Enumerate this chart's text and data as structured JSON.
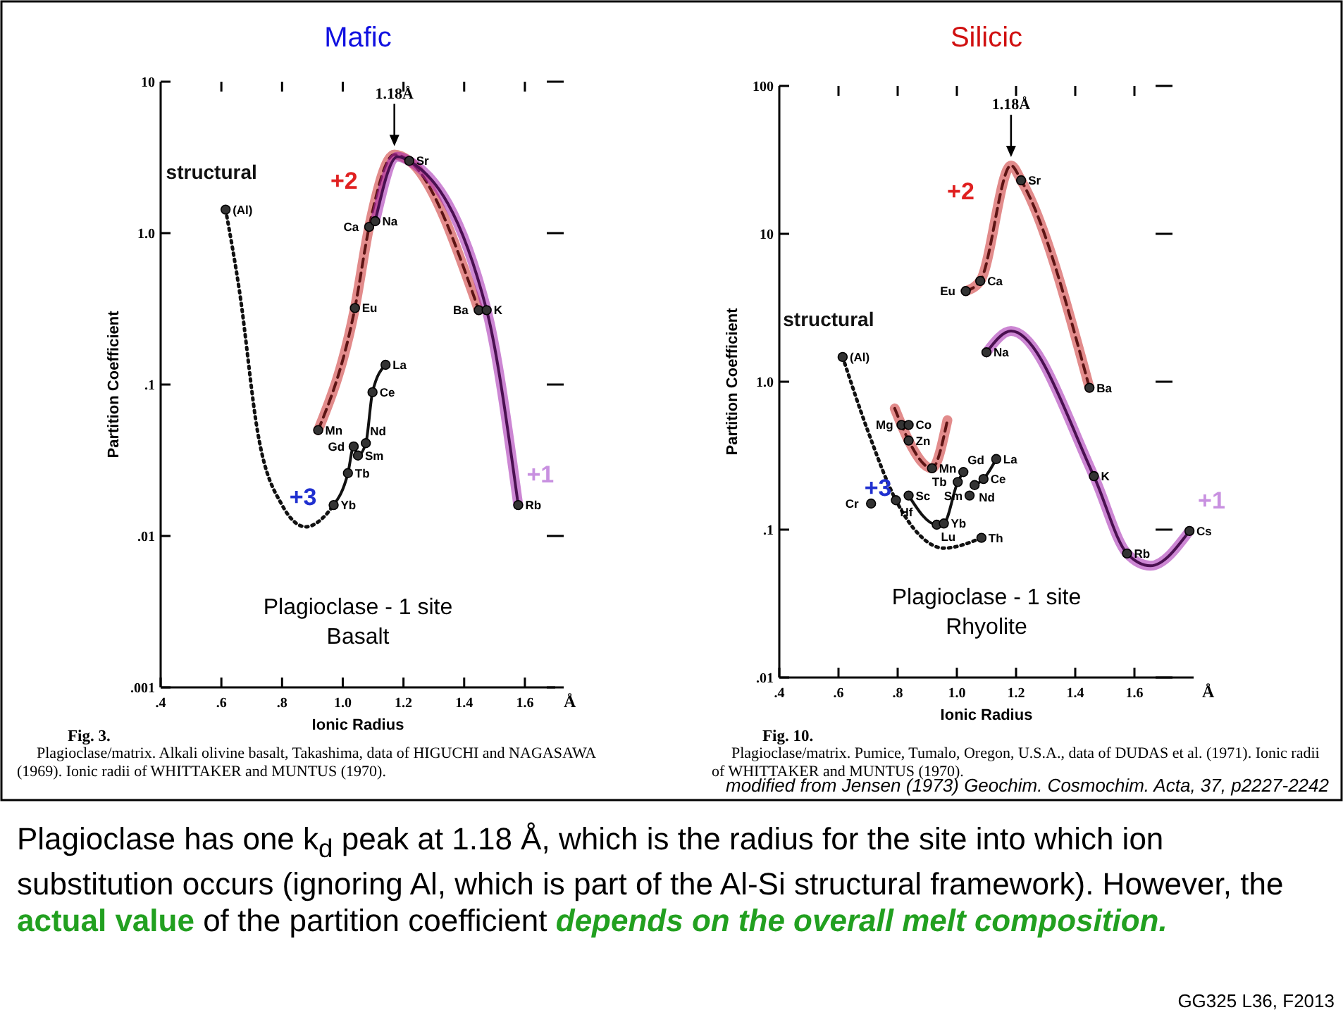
{
  "chart_data": [
    {
      "type": "line",
      "title": "Mafic",
      "xlabel": "Ionic Radius",
      "ylabel": "Partition Coefficient",
      "log": "y",
      "xlim": [
        0.4,
        1.7
      ],
      "ylim": [
        0.001,
        10
      ],
      "xticks": [
        {
          "value": 0.4,
          "label": ".4"
        },
        {
          "value": 0.6,
          "label": ".6"
        },
        {
          "value": 0.8,
          "label": ".8"
        },
        {
          "value": 1.0,
          "label": "1.0"
        },
        {
          "value": 1.2,
          "label": "1.2"
        },
        {
          "value": 1.4,
          "label": "1.4"
        },
        {
          "value": 1.6,
          "label": "1.6"
        }
      ],
      "yticks": [
        {
          "value": 10,
          "label": "10"
        },
        {
          "value": 1,
          "label": "1.0"
        },
        {
          "value": 0.1,
          "label": ".1"
        },
        {
          "value": 0.01,
          "label": ".01"
        },
        {
          "value": 0.001,
          "label": ".001"
        }
      ],
      "series": [
        {
          "name": "structural",
          "type": "line",
          "color": "#111111",
          "line_style": "dotted",
          "marker": "none",
          "x": [
            0.614,
            0.66,
            0.72,
            0.8,
            0.878,
            0.94,
            0.97
          ],
          "values": [
            1.43,
            0.41,
            0.048,
            0.016,
            0.0115,
            0.0135,
            0.016
          ]
        },
        {
          "name": "+3",
          "type": "line",
          "color": "#111111",
          "line_style": "solid",
          "marker": "none",
          "x": [
            0.97,
            1.017,
            1.036,
            1.05,
            1.076,
            1.098,
            1.141
          ],
          "values": [
            0.016,
            0.026,
            0.039,
            0.034,
            0.041,
            0.089,
            0.135
          ]
        },
        {
          "name": "+2",
          "type": "line",
          "color": "#5c1414",
          "line_style": "dashed",
          "marker": "none",
          "x": [
            0.919,
            1.04,
            1.087,
            1.17,
            1.219,
            1.448
          ],
          "values": [
            0.05,
            0.32,
            1.1,
            3.3,
            3.0,
            0.31
          ]
        },
        {
          "name": "+1",
          "type": "line",
          "color": "#4a1050",
          "line_style": "solid",
          "marker": "none",
          "x": [
            1.107,
            1.18,
            1.219,
            1.474,
            1.578
          ],
          "values": [
            1.2,
            3.2,
            3.0,
            0.31,
            0.016
          ]
        },
        {
          "type": "scatter",
          "color": "#333333",
          "marker": "circle",
          "x": [
            0.614,
            0.919,
            1.04,
            1.087,
            1.107,
            1.219,
            1.448,
            1.474,
            1.578,
            0.97,
            1.017,
            1.036,
            1.05,
            1.076,
            1.098,
            1.141
          ],
          "values": [
            1.43,
            0.05,
            0.32,
            1.1,
            1.2,
            3.0,
            0.31,
            0.31,
            0.016,
            0.016,
            0.026,
            0.039,
            0.034,
            0.041,
            0.089,
            0.135
          ]
        }
      ],
      "annotations": [
        "Plagioclase - 1 site",
        "Basalt",
        "Å",
        "Fig. 3.",
        "Plagioclase/matrix.  Alkali olivine basalt, Takashima, data of HIGUCHI and NAGASAWA (1969).  Ionic radii of WHITTAKER and MUNTUS (1970).",
        "1.18Å",
        {
          "text": "(Al)",
          "x": 0.614,
          "y": 1.43
        },
        {
          "text": "Mn",
          "x": 0.919,
          "y": 0.05
        },
        {
          "text": "Eu",
          "x": 1.04,
          "y": 0.32
        },
        {
          "text": "Ca",
          "x": 1.087,
          "y": 1.1
        },
        {
          "text": "Na",
          "x": 1.107,
          "y": 1.2
        },
        {
          "text": "Sr",
          "x": 1.219,
          "y": 3.0
        },
        {
          "text": "Ba",
          "x": 1.448,
          "y": 0.31
        },
        {
          "text": "K",
          "x": 1.474,
          "y": 0.31
        },
        {
          "text": "Rb",
          "x": 1.578,
          "y": 0.016
        },
        {
          "text": "Yb",
          "x": 0.97,
          "y": 0.016
        },
        {
          "text": "Tb",
          "x": 1.017,
          "y": 0.026
        },
        {
          "text": "Gd",
          "x": 1.036,
          "y": 0.039
        },
        {
          "text": "Sm",
          "x": 1.05,
          "y": 0.034
        },
        {
          "text": "Nd",
          "x": 1.076,
          "y": 0.041
        },
        {
          "text": "Ce",
          "x": 1.098,
          "y": 0.089
        },
        {
          "text": "La",
          "x": 1.141,
          "y": 0.135
        }
      ]
    },
    {
      "type": "line",
      "title": "Silicic",
      "xlabel": "Ionic Radius",
      "ylabel": "Partition Coefficient",
      "log": "y",
      "xlim": [
        0.4,
        1.8
      ],
      "ylim": [
        0.01,
        100
      ],
      "xticks": [
        {
          "value": 0.4,
          "label": ".4"
        },
        {
          "value": 0.6,
          "label": ".6"
        },
        {
          "value": 0.8,
          "label": ".8"
        },
        {
          "value": 1.0,
          "label": "1.0"
        },
        {
          "value": 1.2,
          "label": "1.2"
        },
        {
          "value": 1.4,
          "label": "1.4"
        },
        {
          "value": 1.6,
          "label": "1.6"
        }
      ],
      "yticks": [
        {
          "value": 100,
          "label": "100"
        },
        {
          "value": 10,
          "label": "10"
        },
        {
          "value": 1,
          "label": "1.0"
        },
        {
          "value": 0.1,
          "label": ".1"
        },
        {
          "value": 0.01,
          "label": ".01"
        }
      ],
      "series": [
        {
          "name": "structural",
          "type": "line",
          "color": "#111111",
          "line_style": "dotted",
          "marker": "none",
          "x": [
            0.614,
            0.7,
            0.794,
            0.876,
            0.956,
            1.083
          ],
          "values": [
            1.47,
            0.46,
            0.158,
            0.091,
            0.075,
            0.088
          ]
        },
        {
          "name": "+3",
          "type": "line",
          "color": "#111111",
          "line_style": "solid",
          "marker": "none",
          "x": [
            0.837,
            0.932,
            0.956,
            1.003,
            1.022,
            1.05,
            1.06,
            1.09,
            1.133
          ],
          "values": [
            0.17,
            0.108,
            0.11,
            0.21,
            0.245,
            null,
            0.2,
            0.22,
            0.3
          ]
        },
        {
          "name": "+2",
          "type": "line",
          "color": "#5c1414",
          "line_style": "dashed",
          "marker": "none",
          "x": [
            0.79,
            0.813,
            0.837,
            0.916,
            0.968,
            1.0,
            1.03,
            1.079,
            1.183,
            1.217,
            1.448
          ],
          "values": [
            0.66,
            0.51,
            0.4,
            0.26,
            0.55,
            null,
            4.1,
            4.8,
            29,
            23,
            0.91
          ]
        },
        {
          "name": "+1",
          "type": "line",
          "color": "#4a1050",
          "line_style": "solid",
          "marker": "none",
          "x": [
            1.1,
            1.183,
            1.463,
            1.575,
            1.654,
            1.786
          ],
          "values": [
            1.58,
            2.2,
            0.23,
            0.069,
            0.057,
            0.098
          ]
        },
        {
          "type": "scatter",
          "color": "#333333",
          "marker": "circle",
          "x": [
            0.614,
            0.71,
            0.794,
            0.837,
            0.813,
            0.837,
            0.837,
            0.916,
            0.932,
            0.956,
            1.083,
            1.003,
            1.022,
            1.043,
            1.06,
            1.09,
            1.133,
            1.03,
            1.079,
            1.1,
            1.217,
            1.448,
            1.463,
            1.575,
            1.786
          ],
          "values": [
            1.47,
            0.15,
            0.158,
            0.17,
            0.51,
            0.51,
            0.4,
            0.26,
            0.108,
            0.11,
            0.088,
            0.21,
            0.245,
            0.17,
            0.2,
            0.22,
            0.3,
            4.1,
            4.8,
            1.58,
            23,
            0.91,
            0.23,
            0.069,
            0.098
          ]
        }
      ],
      "annotations": [
        "Plagioclase - 1 site",
        "Rhyolite",
        "Å",
        "Fig. 10.",
        "Plagioclase/matrix.  Pumice, Tumalo, Oregon, U.S.A., data of DUDAS et al. (1971).  Ionic radii of WHITTAKER and MUNTUS (1970).",
        "1.18Å",
        {
          "text": "(Al)",
          "x": 0.614,
          "y": 1.47
        },
        {
          "text": "Cr",
          "x": 0.71,
          "y": 0.15
        },
        {
          "text": "Hf",
          "x": 0.794,
          "y": 0.158
        },
        {
          "text": "Sc",
          "x": 0.837,
          "y": 0.17
        },
        {
          "text": "Mg",
          "x": 0.813,
          "y": 0.51
        },
        {
          "text": "Co",
          "x": 0.837,
          "y": 0.51
        },
        {
          "text": "Zn",
          "x": 0.837,
          "y": 0.4
        },
        {
          "text": "Mn",
          "x": 0.916,
          "y": 0.26
        },
        {
          "text": "Lu",
          "x": 0.932,
          "y": 0.108
        },
        {
          "text": "Yb",
          "x": 0.956,
          "y": 0.11
        },
        {
          "text": "Th",
          "x": 1.083,
          "y": 0.088
        },
        {
          "text": "Tb",
          "x": 1.003,
          "y": 0.21
        },
        {
          "text": "Gd",
          "x": 1.022,
          "y": 0.245
        },
        {
          "text": "Sm",
          "x": 1.043,
          "y": 0.17
        },
        {
          "text": "Nd",
          "x": 1.06,
          "y": 0.2
        },
        {
          "text": "Ce",
          "x": 1.09,
          "y": 0.22
        },
        {
          "text": "La",
          "x": 1.133,
          "y": 0.3
        },
        {
          "text": "Eu",
          "x": 1.03,
          "y": 4.1
        },
        {
          "text": "Ca",
          "x": 1.079,
          "y": 4.8
        },
        {
          "text": "Na",
          "x": 1.1,
          "y": 1.58
        },
        {
          "text": "Sr",
          "x": 1.217,
          "y": 23
        },
        {
          "text": "Ba",
          "x": 1.448,
          "y": 0.91
        },
        {
          "text": "K",
          "x": 1.463,
          "y": 0.23
        },
        {
          "text": "Rb",
          "x": 1.575,
          "y": 0.069
        },
        {
          "text": "Cs",
          "x": 1.786,
          "y": 0.098
        }
      ]
    },
    {
      "type": "other",
      "annotations": [
        "Plagioclase has one k$_{d}$ peak at 1.18 Å, which is the radius for the site into which ion substitution occurs (ignoring Al, which is part of the Al-Si structural framework).  However, the ",
        "actual value",
        " of the partition coefficient ",
        "depends on the overall melt composition.",
        "modified from Jensen (1973) Geochim. Cosmochim. Acta, 37, p2227-2242",
        "GG325 L36, F2013"
      ]
    }
  ]
}
